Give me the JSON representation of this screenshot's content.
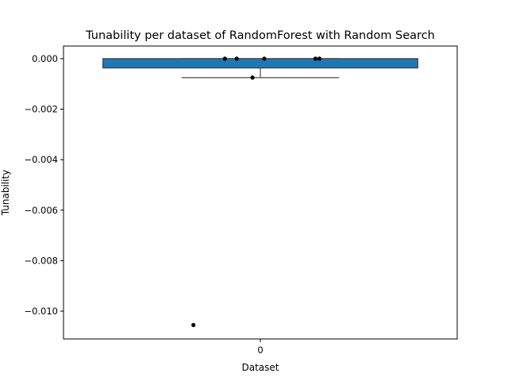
{
  "chart_data": {
    "type": "box",
    "title": "Tunability per dataset of RandomForest with Random Search",
    "xlabel": "Dataset",
    "ylabel": "Tunability",
    "categories": [
      "0"
    ],
    "ylim": [
      -0.0111,
      0.0005
    ],
    "yticks": [
      0.0,
      -0.002,
      -0.004,
      -0.006,
      -0.008,
      -0.01
    ],
    "ytick_labels": [
      "0.000",
      "−0.002",
      "−0.004",
      "−0.006",
      "−0.008",
      "−0.010"
    ],
    "box": {
      "category": "0",
      "q1": -0.00037,
      "median": 0.0,
      "q3": 0.0,
      "whisker_low": -0.00075,
      "whisker_high": 0.0,
      "color": "#1f77b4"
    },
    "points": [
      {
        "jitter": -0.09,
        "y": 0.0
      },
      {
        "jitter": -0.06,
        "y": 0.0
      },
      {
        "jitter": 0.01,
        "y": 0.0
      },
      {
        "jitter": 0.14,
        "y": 0.0
      },
      {
        "jitter": 0.15,
        "y": 0.0
      },
      {
        "jitter": -0.02,
        "y": -0.00075
      },
      {
        "jitter": -0.17,
        "y": -0.01055
      }
    ],
    "grid": false,
    "legend": "none"
  }
}
